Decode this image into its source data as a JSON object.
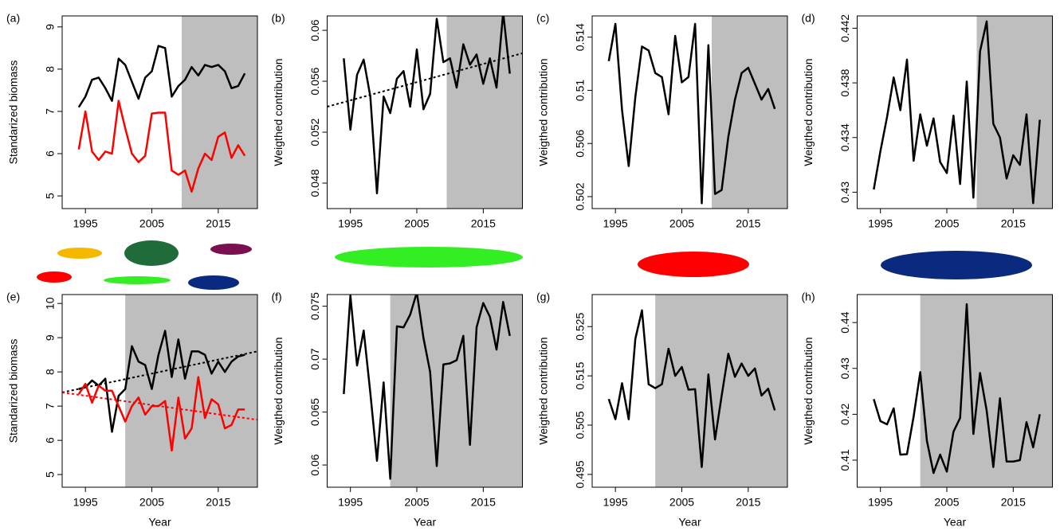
{
  "chart_data": [
    {
      "type": "line",
      "label": "(a)",
      "ylabel": "Standarized biomass",
      "xlim": [
        1991.5,
        2020.9
      ],
      "ylim": [
        4.7,
        9.26
      ],
      "xticks": [
        1995,
        2005,
        2015
      ],
      "yticks": [
        5,
        6,
        7,
        8,
        9
      ],
      "shade": [
        2009.5,
        2020.9
      ],
      "x": [
        1994,
        1995,
        1996,
        1997,
        1998,
        1999,
        2000,
        2001,
        2002,
        2003,
        2004,
        2005,
        2006,
        2007,
        2008,
        2009,
        2010,
        2011,
        2012,
        2013,
        2014,
        2015,
        2016,
        2017,
        2018,
        2019
      ],
      "series": [
        {
          "color": "#000000",
          "values": [
            7.1,
            7.35,
            7.75,
            7.8,
            7.55,
            7.25,
            8.25,
            8.1,
            7.7,
            7.3,
            7.8,
            7.95,
            8.55,
            8.5,
            7.35,
            7.6,
            7.75,
            8.05,
            7.85,
            8.1,
            8.05,
            8.1,
            7.95,
            7.55,
            7.6,
            7.9
          ]
        },
        {
          "color": "#ff0000",
          "values": [
            6.1,
            7.0,
            6.05,
            5.85,
            6.05,
            6.0,
            7.25,
            6.6,
            6.0,
            5.8,
            5.95,
            6.95,
            6.97,
            6.97,
            5.6,
            5.5,
            5.6,
            5.1,
            5.65,
            6.0,
            5.85,
            6.4,
            6.5,
            5.9,
            6.2,
            5.95
          ]
        }
      ]
    },
    {
      "type": "line",
      "label": "(b)",
      "ylabel": "Weigthed contribution",
      "xlim": [
        1991.5,
        2020.9
      ],
      "ylim": [
        0.046,
        0.06113
      ],
      "xticks": [
        1995,
        2005,
        2015
      ],
      "yticks": [
        0.048,
        0.052,
        0.056,
        0.06
      ],
      "shade": [
        2009.5,
        2020.9
      ],
      "x": [
        1994,
        1995,
        1996,
        1997,
        1998,
        1999,
        2000,
        2001,
        2002,
        2003,
        2004,
        2005,
        2006,
        2007,
        2008,
        2009,
        2010,
        2011,
        2012,
        2013,
        2014,
        2015,
        2016,
        2017,
        2018,
        2019
      ],
      "series": [
        {
          "color": "#000000",
          "values": [
            0.0578,
            0.0522,
            0.0565,
            0.0577,
            0.0548,
            0.0472,
            0.0548,
            0.0535,
            0.0562,
            0.0568,
            0.054,
            0.0585,
            0.0538,
            0.055,
            0.0609,
            0.0575,
            0.0578,
            0.0555,
            0.0589,
            0.0573,
            0.0581,
            0.0558,
            0.0578,
            0.0555,
            0.0614,
            0.0566
          ]
        }
      ],
      "trends": [
        {
          "color": "#000000",
          "x": [
            1991.5,
            2020.9
          ],
          "values": [
            0.054,
            0.0582
          ]
        }
      ]
    },
    {
      "type": "line",
      "label": "(c)",
      "ylabel": "Weigthed contribution",
      "xlim": [
        1991.5,
        2020.9
      ],
      "ylim": [
        0.5011,
        0.5156
      ],
      "xticks": [
        1995,
        2005,
        2015
      ],
      "yticks": [
        0.502,
        0.506,
        0.51,
        0.514
      ],
      "shade": [
        2009.5,
        2020.9
      ],
      "x": [
        1994,
        1995,
        1996,
        1997,
        1998,
        1999,
        2000,
        2001,
        2002,
        2003,
        2004,
        2005,
        2006,
        2007,
        2008,
        2009,
        2010,
        2011,
        2012,
        2013,
        2014,
        2015,
        2016,
        2017,
        2018,
        2019
      ],
      "series": [
        {
          "color": "#000000",
          "values": [
            0.5122,
            0.515,
            0.5085,
            0.5043,
            0.5095,
            0.5133,
            0.513,
            0.5113,
            0.511,
            0.5082,
            0.5141,
            0.5106,
            0.511,
            0.515,
            0.5015,
            0.5134,
            0.5022,
            0.5025,
            0.5065,
            0.5093,
            0.5113,
            0.5117,
            0.5105,
            0.5093,
            0.5101,
            0.5086
          ]
        }
      ]
    },
    {
      "type": "line",
      "label": "(d)",
      "ylabel": "Weigthed contribution",
      "xlim": [
        1991.5,
        2020.9
      ],
      "ylim": [
        0.4288,
        0.4429
      ],
      "xticks": [
        1995,
        2005,
        2015
      ],
      "yticks": [
        0.43,
        0.434,
        0.438,
        0.442
      ],
      "shade": [
        2009.5,
        2020.9
      ],
      "x": [
        1994,
        1995,
        1996,
        1997,
        1998,
        1999,
        2000,
        2001,
        2002,
        2003,
        2004,
        2005,
        2006,
        2007,
        2008,
        2009,
        2010,
        2011,
        2012,
        2013,
        2014,
        2015,
        2016,
        2017,
        2018,
        2019
      ],
      "series": [
        {
          "color": "#000000",
          "values": [
            0.4302,
            0.433,
            0.4355,
            0.4384,
            0.436,
            0.4397,
            0.4323,
            0.4357,
            0.4334,
            0.4354,
            0.4322,
            0.4314,
            0.4356,
            0.4306,
            0.4381,
            0.4296,
            0.4403,
            0.4425,
            0.435,
            0.434,
            0.431,
            0.4327,
            0.432,
            0.4357,
            0.4292,
            0.4353
          ]
        }
      ]
    },
    {
      "type": "line",
      "label": "(e)",
      "ylabel": "Standarized biomass",
      "xlabel": "Year",
      "xlim": [
        1991.5,
        2020.9
      ],
      "ylim": [
        4.63,
        10.26
      ],
      "xticks": [
        1995,
        2005,
        2015
      ],
      "yticks": [
        5,
        6,
        7,
        8,
        9,
        10
      ],
      "shade": [
        2001,
        2020.9
      ],
      "x": [
        1994,
        1995,
        1996,
        1997,
        1998,
        1999,
        2000,
        2001,
        2002,
        2003,
        2004,
        2005,
        2006,
        2007,
        2008,
        2009,
        2010,
        2011,
        2012,
        2013,
        2014,
        2015,
        2016,
        2017,
        2018,
        2019
      ],
      "series": [
        {
          "color": "#000000",
          "values": [
            7.5,
            7.55,
            7.75,
            7.6,
            7.8,
            6.25,
            7.3,
            7.5,
            8.75,
            8.3,
            8.2,
            7.5,
            8.5,
            9.2,
            7.85,
            8.95,
            7.8,
            8.6,
            8.6,
            8.5,
            7.95,
            8.3,
            8.0,
            8.3,
            8.45,
            8.5
          ]
        },
        {
          "color": "#ff0000",
          "values": [
            7.35,
            7.65,
            7.1,
            7.6,
            7.45,
            7.45,
            7.0,
            6.55,
            7.0,
            7.25,
            6.75,
            7.0,
            7.0,
            7.15,
            5.7,
            7.25,
            6.05,
            6.35,
            7.85,
            6.65,
            7.2,
            7.05,
            6.35,
            6.45,
            6.9,
            6.9
          ]
        }
      ],
      "trends": [
        {
          "color": "#000000",
          "x": [
            1991.5,
            2020.9
          ],
          "values": [
            7.4,
            8.6
          ]
        },
        {
          "color": "#ff0000",
          "x": [
            1991.5,
            2020.9
          ],
          "values": [
            7.4,
            6.6
          ]
        }
      ]
    },
    {
      "type": "line",
      "label": "(f)",
      "ylabel": "Weigthed contribution",
      "xlabel": "Year",
      "xlim": [
        1991.5,
        2020.9
      ],
      "ylim": [
        0.0579,
        0.0761
      ],
      "xticks": [
        1995,
        2005,
        2015
      ],
      "yticks": [
        0.06,
        0.065,
        0.07,
        0.075
      ],
      "shade": [
        2001,
        2020.9
      ],
      "x": [
        1994,
        1995,
        1996,
        1997,
        1998,
        1999,
        2000,
        2001,
        2002,
        2003,
        2004,
        2005,
        2006,
        2007,
        2008,
        2009,
        2010,
        2011,
        2012,
        2013,
        2014,
        2015,
        2016,
        2017,
        2018,
        2019
      ],
      "series": [
        {
          "color": "#000000",
          "values": [
            0.0667,
            0.076,
            0.0694,
            0.0727,
            0.0668,
            0.0604,
            0.0678,
            0.0587,
            0.0731,
            0.073,
            0.0742,
            0.0763,
            0.072,
            0.0688,
            0.0599,
            0.0695,
            0.0696,
            0.0699,
            0.0722,
            0.0619,
            0.073,
            0.0753,
            0.074,
            0.0709,
            0.0754,
            0.0722
          ]
        }
      ]
    },
    {
      "type": "line",
      "label": "(g)",
      "ylabel": "Weigthed contribution",
      "xlabel": "Year",
      "xlim": [
        1991.5,
        2020.9
      ],
      "ylim": [
        0.4924,
        0.5315
      ],
      "xticks": [
        1995,
        2005,
        2015
      ],
      "yticks": [
        0.495,
        0.505,
        0.515,
        0.525
      ],
      "shade": [
        2001,
        2020.9
      ],
      "x": [
        1994,
        1995,
        1996,
        1997,
        1998,
        1999,
        2000,
        2001,
        2002,
        2003,
        2004,
        2005,
        2006,
        2007,
        2008,
        2009,
        2010,
        2011,
        2012,
        2013,
        2014,
        2015,
        2016,
        2017,
        2018,
        2019
      ],
      "series": [
        {
          "color": "#000000",
          "values": [
            0.5103,
            0.5062,
            0.5135,
            0.5062,
            0.5225,
            0.5283,
            0.5133,
            0.5125,
            0.5133,
            0.5205,
            0.515,
            0.5168,
            0.5122,
            0.5123,
            0.4965,
            0.5153,
            0.5021,
            0.511,
            0.5195,
            0.5148,
            0.5175,
            0.515,
            0.5165,
            0.511,
            0.5124,
            0.508
          ]
        }
      ]
    },
    {
      "type": "line",
      "label": "(h)",
      "ylabel": "Weigthed contribution",
      "xlabel": "Year",
      "xlim": [
        1991.5,
        2020.9
      ],
      "ylim": [
        0.4041,
        0.4461
      ],
      "xticks": [
        1995,
        2005,
        2015
      ],
      "yticks": [
        0.41,
        0.42,
        0.43,
        0.44
      ],
      "shade": [
        2001,
        2020.9
      ],
      "x": [
        1994,
        1995,
        1996,
        1997,
        1998,
        1999,
        2000,
        2001,
        2002,
        2003,
        2004,
        2005,
        2006,
        2007,
        2008,
        2009,
        2010,
        2011,
        2012,
        2013,
        2014,
        2015,
        2016,
        2017,
        2018,
        2019
      ],
      "series": [
        {
          "color": "#000000",
          "values": [
            0.4233,
            0.4185,
            0.4178,
            0.4213,
            0.4112,
            0.4113,
            0.4195,
            0.4292,
            0.4142,
            0.4072,
            0.4112,
            0.4075,
            0.4162,
            0.4192,
            0.444,
            0.4157,
            0.429,
            0.4208,
            0.4085,
            0.4235,
            0.4097,
            0.4097,
            0.41,
            0.4183,
            0.4128,
            0.42
          ]
        }
      ]
    }
  ]
}
